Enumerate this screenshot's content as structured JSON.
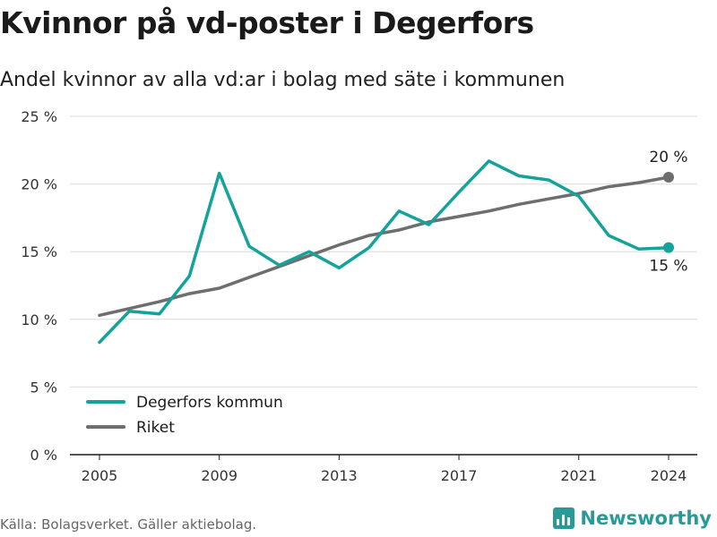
{
  "header": {
    "title": "Kvinnor på vd-poster i Degerfors",
    "subtitle": "Andel kvinnor av alla vd:ar i bolag med säte i kommunen"
  },
  "footer": {
    "source": "Källa: Bolagsverket. Gäller aktiebolag.",
    "brand": "Newsworthy"
  },
  "colors": {
    "degerfors": "#14a39a",
    "riket": "#6e6e70",
    "grid": "#dcdcdc",
    "brand": "#2a9a98"
  },
  "chart_data": {
    "type": "line",
    "x": [
      2005,
      2006,
      2007,
      2008,
      2009,
      2010,
      2011,
      2012,
      2013,
      2014,
      2015,
      2016,
      2017,
      2018,
      2019,
      2020,
      2021,
      2022,
      2023,
      2024
    ],
    "series": [
      {
        "name": "Degerfors kommun",
        "color": "#14a39a",
        "values": [
          8.3,
          10.6,
          10.4,
          13.2,
          20.8,
          15.4,
          14.0,
          15.0,
          13.8,
          15.3,
          18.0,
          17.0,
          19.4,
          21.7,
          20.6,
          20.3,
          19.1,
          16.2,
          15.2,
          15.3
        ],
        "end_label": "15 %"
      },
      {
        "name": "Riket",
        "color": "#6e6e70",
        "values": [
          10.3,
          10.8,
          11.3,
          11.9,
          12.3,
          13.1,
          13.9,
          14.7,
          15.5,
          16.2,
          16.6,
          17.2,
          17.6,
          18.0,
          18.5,
          18.9,
          19.3,
          19.8,
          20.1,
          20.5
        ],
        "end_label": "20 %"
      }
    ],
    "xticks": [
      "2005",
      "2009",
      "2013",
      "2017",
      "2021",
      "2024"
    ],
    "yticks": [
      "0 %",
      "5 %",
      "10 %",
      "15 %",
      "20 %",
      "25 %"
    ],
    "ylim": [
      0,
      25
    ],
    "xlim": [
      2005,
      2024
    ],
    "grid": true,
    "legend_position": "bottom-left"
  }
}
